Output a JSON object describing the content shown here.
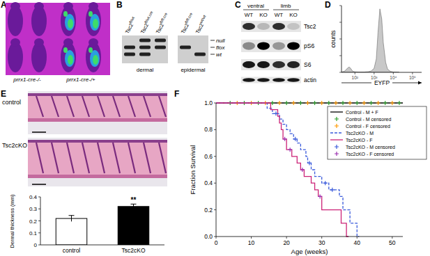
{
  "panels": {
    "A": {
      "label": "A",
      "captions": [
        "prrx1-cre-/-",
        "prrx1-cre-/+"
      ]
    },
    "B": {
      "label": "B",
      "lanes": [
        {
          "base": "Tsc2",
          "sup": "fl/wt"
        },
        {
          "base": "Tsc2",
          "sup": "fl/wt.cre"
        },
        {
          "base": "Tsc2",
          "sup": "fl/fl.cre"
        },
        {
          "base": "Tsc2",
          "sup": "fl/fl.cre"
        },
        {
          "base": "Tsc2",
          "sup": "wt/wt"
        }
      ],
      "groups": [
        "dermal",
        "epidermal"
      ],
      "bands": [
        "null",
        "flox",
        "wt"
      ]
    },
    "C": {
      "label": "C",
      "groups": [
        "ventral",
        "limb"
      ],
      "lanes": [
        "WT",
        "KO",
        "WT",
        "KO"
      ],
      "rows": [
        "Tsc2",
        "pS6",
        "S6",
        "actin"
      ]
    },
    "D": {
      "label": "D"
    },
    "E": {
      "label": "E",
      "images": [
        "control",
        "Tsc2cKO"
      ]
    },
    "F": {
      "label": "F"
    }
  },
  "chart_data": [
    {
      "type": "area",
      "xlabel": "EYFP",
      "ylabel": "counts",
      "log": "x",
      "color": "#c8c8c8",
      "x": [
        20,
        30,
        40,
        50,
        60,
        70,
        80,
        100,
        150,
        200,
        300,
        400,
        500,
        700,
        1000,
        1300,
        1600,
        2000,
        2500,
        3000,
        4000,
        5000,
        7000,
        10000,
        20000
      ],
      "values": [
        5,
        20,
        60,
        80,
        60,
        30,
        15,
        8,
        5,
        5,
        5,
        8,
        10,
        20,
        60,
        200,
        600,
        950,
        800,
        450,
        150,
        50,
        15,
        5,
        2
      ],
      "xlim": [
        20,
        300000
      ],
      "xticks": [
        {
          "value": 100,
          "label": "10²"
        },
        {
          "value": 1000,
          "label": "10³"
        },
        {
          "value": 10000,
          "label": "10⁴"
        },
        {
          "value": 100000,
          "label": "10⁵"
        }
      ],
      "ylim": [
        0,
        1000
      ],
      "yticks": [
        0,
        250,
        500,
        750,
        1000
      ],
      "tick_labels": "x"
    },
    {
      "type": "bar",
      "ylabel": "Dermal thickness (mm)",
      "categories": [
        "control",
        "Tsc2cKO"
      ],
      "values": [
        0.22,
        0.32
      ],
      "errors": [
        0.025,
        0.02
      ],
      "colors": [
        "#ffffff",
        "#000000"
      ],
      "ylim": [
        0,
        0.4
      ],
      "yticks": [
        0,
        0.1,
        0.2,
        0.3,
        0.4
      ],
      "annotations": [
        {
          "category": "Tsc2cKO",
          "text": "**"
        }
      ]
    },
    {
      "type": "line",
      "xlabel": "Age (weeks)",
      "ylabel": "Fraction Survival",
      "xlim": [
        0,
        53
      ],
      "ylim": [
        0,
        1
      ],
      "xticks": [
        0,
        10,
        20,
        30,
        40,
        50
      ],
      "yticks": [
        {
          "value": 0,
          "label": "0.0"
        },
        0.2,
        0.4,
        0.6,
        0.8,
        {
          "value": 1,
          "label": "1.0"
        }
      ],
      "legend": "top-right",
      "grid": false,
      "series": [
        {
          "name": "Control - M + F",
          "color": "#000000",
          "type": "line",
          "line_style": "solid",
          "x": [
            0,
            53
          ],
          "values": [
            1,
            1
          ]
        },
        {
          "name": "Control - M censored",
          "color": "#2ca02c",
          "type": "scatter",
          "marker": "plus",
          "x": [
            4,
            8,
            12,
            16,
            20,
            24,
            28,
            32,
            36,
            40,
            44,
            48,
            52
          ],
          "values": [
            1,
            1,
            1,
            1,
            1,
            1,
            1,
            1,
            1,
            1,
            1,
            1,
            1
          ]
        },
        {
          "name": "Control - F censored",
          "color": "#ff9900",
          "type": "scatter",
          "marker": "plus",
          "x": [
            6,
            10,
            14,
            18,
            22,
            26,
            30,
            34,
            38,
            42,
            46,
            50
          ],
          "values": [
            1,
            1,
            1,
            1,
            1,
            1,
            1,
            1,
            1,
            1,
            1,
            1
          ]
        },
        {
          "name": "Tsc2cKO - M",
          "color": "#3b5bdb",
          "type": "step",
          "line_style": "dashed",
          "x": [
            0,
            14.5,
            16,
            18,
            19,
            20,
            21,
            22,
            23,
            24,
            25.5,
            26,
            27,
            28,
            30,
            32,
            35,
            36,
            38,
            40
          ],
          "values": [
            1,
            0.96,
            0.92,
            0.88,
            0.84,
            0.8,
            0.77,
            0.73,
            0.7,
            0.65,
            0.6,
            0.55,
            0.5,
            0.45,
            0.4,
            0.35,
            0.3,
            0.2,
            0.1,
            0
          ]
        },
        {
          "name": "Tsc2cKO - F",
          "color": "#cc2277",
          "type": "step",
          "line_style": "solid",
          "x": [
            0,
            15.5,
            17.5,
            18,
            18.5,
            19,
            20,
            21.5,
            23,
            24,
            25,
            27,
            28,
            29,
            30,
            35.5,
            37
          ],
          "values": [
            1,
            0.95,
            0.9,
            0.85,
            0.8,
            0.73,
            0.65,
            0.6,
            0.55,
            0.5,
            0.45,
            0.4,
            0.35,
            0.3,
            0.2,
            0.1,
            0
          ]
        },
        {
          "name": "Tsc2cKO - M censored",
          "color": "#3b5bdb",
          "type": "scatter",
          "marker": "plus",
          "x": [
            17,
            22.5,
            26.5,
            31,
            33
          ],
          "values": [
            0.92,
            0.73,
            0.55,
            0.4,
            0.35
          ]
        },
        {
          "name": "Tsc2cKO - F censored",
          "color": "#9b30b0",
          "type": "scatter",
          "marker": "plus",
          "x": [
            19.5,
            21,
            24.5,
            29.5
          ],
          "values": [
            0.73,
            0.65,
            0.5,
            0.3
          ]
        }
      ]
    }
  ]
}
